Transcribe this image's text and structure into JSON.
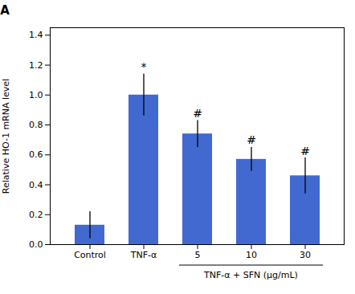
{
  "chart_data": {
    "type": "bar",
    "title": "A",
    "categories": [
      "Control",
      "TNF-α",
      "5",
      "10",
      "30"
    ],
    "values": [
      0.13,
      1.0,
      0.74,
      0.57,
      0.46
    ],
    "errors": [
      0.09,
      0.14,
      0.09,
      0.08,
      0.12
    ],
    "ylabel": "Relative HO-1 mRNA level",
    "ylim": [
      0,
      1.45
    ],
    "yticks": [
      {
        "value": 0,
        "label": "0.0"
      },
      0.2,
      0.4,
      0.6,
      0.8,
      {
        "value": 1,
        "label": "1.0"
      },
      1.2,
      1.4
    ],
    "color": "#4269d0",
    "grid": false,
    "annotations": [
      {
        "text": "*",
        "category": "TNF-α"
      },
      {
        "text": "#",
        "category": "5"
      },
      {
        "text": "#",
        "category": "10"
      },
      {
        "text": "#",
        "category": "30"
      },
      {
        "text": "TNF-α + SFN (μg/mL)",
        "categories": [
          "5",
          "10",
          "30"
        ]
      }
    ]
  }
}
